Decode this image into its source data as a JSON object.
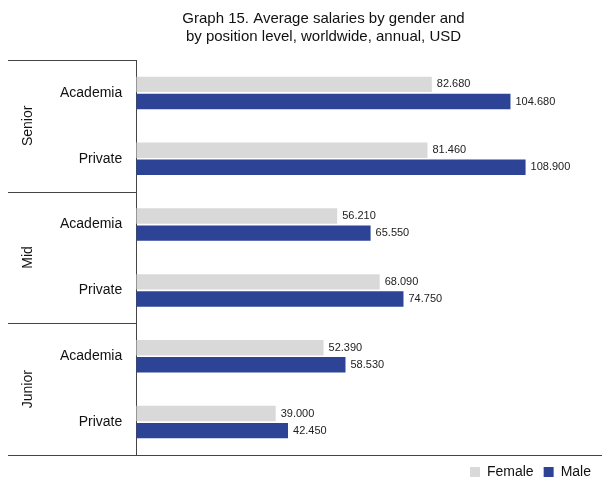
{
  "chart_data": {
    "type": "bar",
    "orientation": "horizontal",
    "title": [
      "Graph 15. Average salaries by gender and",
      "by position level, worldwide, annual, USD"
    ],
    "categories": [
      "Academia",
      "Private",
      "Academia",
      "Private",
      "Academia",
      "Private"
    ],
    "category_groups": [
      "Senior",
      "Senior",
      "Mid",
      "Mid",
      "Junior",
      "Junior"
    ],
    "series": [
      {
        "name": "Female",
        "color": "#d9d9d9",
        "values": [
          82680,
          81460,
          56210,
          68090,
          52390,
          39000
        ],
        "value_labels": [
          "82.680",
          "81.460",
          "56.210",
          "68.090",
          "52.390",
          "39.000"
        ]
      },
      {
        "name": "Male",
        "color": "#2d4496",
        "values": [
          104680,
          108900,
          65550,
          74750,
          58530,
          42450
        ],
        "value_labels": [
          "104.680",
          "108.900",
          "65.550",
          "74.750",
          "58.530",
          "42.450"
        ]
      }
    ],
    "xlim": [
      0,
      130000
    ],
    "grid": false,
    "legend": "bottom-right",
    "data_labels": true,
    "tick_labels": "y"
  }
}
